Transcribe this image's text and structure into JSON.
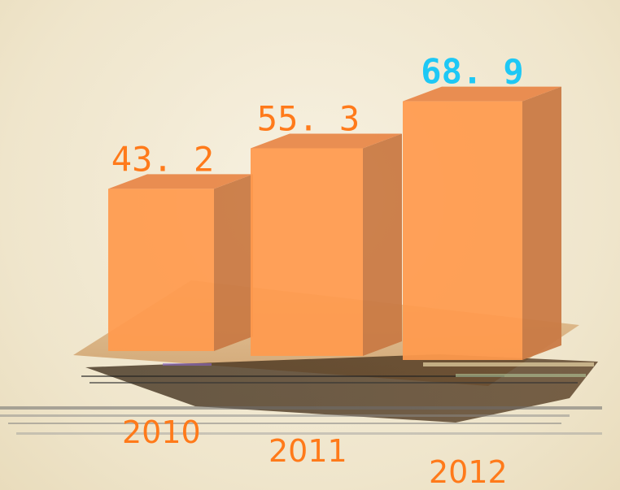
{
  "chart_data": {
    "type": "bar",
    "style": "3d",
    "categories": [
      "2010",
      "2011",
      "2012"
    ],
    "values": [
      43.2,
      55.3,
      68.9
    ],
    "value_labels": [
      "43. 2",
      "55. 3",
      "68. 9"
    ],
    "highlight_index": 2,
    "ylim": [
      0,
      75
    ],
    "grid": false,
    "legend": "none"
  },
  "colors": {
    "bar_front": "#ff9a4d",
    "bar_side": "#c97a44",
    "bar_top": "#e8884a",
    "label": "#ff7a1a",
    "highlight_label": "#1ec8f5",
    "floor": "#d9a66a"
  }
}
